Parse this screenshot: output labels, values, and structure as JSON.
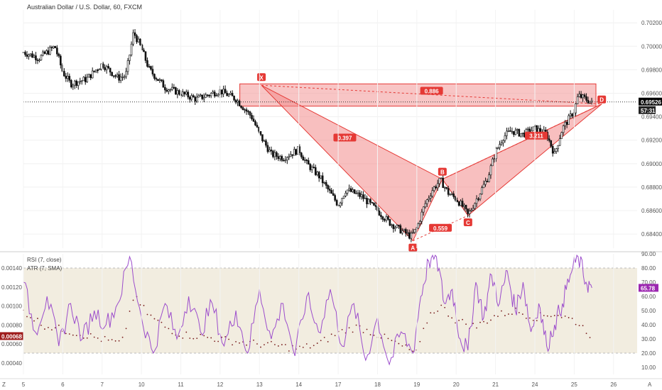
{
  "colors": {
    "pattern_fill": "#f28b8b",
    "pattern_stroke": "#e53935",
    "rsi_line": "#9c4dcc",
    "atr_dots": "#7a1f1f",
    "band_fill": "#ede6d3",
    "candle": "#111111",
    "badge": "#e53935",
    "price_badge_bg": "#000000",
    "rsi_badge_bg": "#9c27b0",
    "atr_badge_bg": "#9e1b1b"
  },
  "header": {
    "symbol_title": "Australian Dollar / U.S. Dollar, 60, FXCM"
  },
  "indicators": {
    "rsi_label": "RSI (7, close)",
    "atr_label": "ATR (7, SMA)",
    "rsi_current": "65.78",
    "atr_current": "0.00068"
  },
  "price_scale": {
    "current_price": "0.69526",
    "countdown": "57:31"
  },
  "footer": {
    "left_corner": "Z",
    "right_corner": "A"
  },
  "chart_data": [
    {
      "type": "candlestick",
      "title": "Australian Dollar / U.S. Dollar, 60, FXCM",
      "x_ticks": [
        "5",
        "6",
        "7",
        "10",
        "11",
        "12",
        "13",
        "14",
        "17",
        "18",
        "19",
        "20",
        "21",
        "24",
        "25",
        "26"
      ],
      "y_ticks": [
        "0.70200",
        "0.70000",
        "0.69800",
        "0.69600",
        "0.69400",
        "0.69200",
        "0.69000",
        "0.68800",
        "0.68600",
        "0.68400"
      ],
      "ylim": [
        0.6828,
        0.7031
      ],
      "close_path": [
        {
          "x": 5.0,
          "y": 0.6995
        },
        {
          "x": 5.4,
          "y": 0.699
        },
        {
          "x": 5.8,
          "y": 0.7
        },
        {
          "x": 6.0,
          "y": 0.6978
        },
        {
          "x": 6.2,
          "y": 0.6968
        },
        {
          "x": 6.6,
          "y": 0.6972
        },
        {
          "x": 7.0,
          "y": 0.6985
        },
        {
          "x": 7.4,
          "y": 0.6973
        },
        {
          "x": 7.6,
          "y": 0.6975
        },
        {
          "x": 7.7,
          "y": 0.6993
        },
        {
          "x": 7.8,
          "y": 0.7012
        },
        {
          "x": 8.0,
          "y": 0.6998
        },
        {
          "x": 8.2,
          "y": 0.698
        },
        {
          "x": 8.6,
          "y": 0.6965
        },
        {
          "x": 9.0,
          "y": 0.696
        },
        {
          "x": 9.4,
          "y": 0.6955
        },
        {
          "x": 9.8,
          "y": 0.696
        },
        {
          "x": 10.0,
          "y": 0.6962
        },
        {
          "x": 10.4,
          "y": 0.6955
        },
        {
          "x": 10.8,
          "y": 0.694
        },
        {
          "x": 11.0,
          "y": 0.6925
        },
        {
          "x": 11.3,
          "y": 0.6908
        },
        {
          "x": 11.6,
          "y": 0.6905
        },
        {
          "x": 12.0,
          "y": 0.6912
        },
        {
          "x": 12.2,
          "y": 0.69
        },
        {
          "x": 12.5,
          "y": 0.689
        },
        {
          "x": 12.8,
          "y": 0.6875
        },
        {
          "x": 13.0,
          "y": 0.6865
        },
        {
          "x": 13.2,
          "y": 0.6878
        },
        {
          "x": 13.6,
          "y": 0.6872
        },
        {
          "x": 14.0,
          "y": 0.686
        },
        {
          "x": 14.3,
          "y": 0.685
        },
        {
          "x": 14.6,
          "y": 0.6843
        },
        {
          "x": 14.85,
          "y": 0.6838
        },
        {
          "x": 15.0,
          "y": 0.6845
        },
        {
          "x": 15.2,
          "y": 0.6865
        },
        {
          "x": 15.4,
          "y": 0.6878
        },
        {
          "x": 15.6,
          "y": 0.6886
        },
        {
          "x": 15.8,
          "y": 0.6875
        },
        {
          "x": 16.0,
          "y": 0.687
        },
        {
          "x": 16.2,
          "y": 0.6862
        },
        {
          "x": 16.3,
          "y": 0.6856
        },
        {
          "x": 16.6,
          "y": 0.6875
        },
        {
          "x": 16.8,
          "y": 0.6888
        },
        {
          "x": 17.0,
          "y": 0.691
        },
        {
          "x": 17.2,
          "y": 0.6923
        },
        {
          "x": 17.4,
          "y": 0.6928
        },
        {
          "x": 17.7,
          "y": 0.6925
        },
        {
          "x": 18.0,
          "y": 0.693
        },
        {
          "x": 18.3,
          "y": 0.6925
        },
        {
          "x": 18.5,
          "y": 0.6908
        },
        {
          "x": 18.7,
          "y": 0.693
        },
        {
          "x": 19.0,
          "y": 0.6945
        },
        {
          "x": 19.1,
          "y": 0.6958
        },
        {
          "x": 19.3,
          "y": 0.6955
        },
        {
          "x": 19.45,
          "y": 0.6952
        }
      ],
      "pattern": {
        "name": "harmonic XABCD",
        "points": [
          {
            "label": "X",
            "x": 11.05,
            "y": 0.69668
          },
          {
            "label": "A",
            "x": 14.9,
            "y": 0.68343
          },
          {
            "label": "B",
            "x": 15.65,
            "y": 0.68868
          },
          {
            "label": "C",
            "x": 16.3,
            "y": 0.68558
          },
          {
            "label": "D",
            "x": 19.7,
            "y": 0.69508
          }
        ],
        "ratios": [
          "0.886",
          "0.397",
          "0.559",
          "3.211"
        ]
      },
      "zone": {
        "y_low": 0.6949,
        "y_high": 0.6968
      }
    },
    {
      "type": "line",
      "title": "",
      "series": [
        {
          "name": "RSI (7, close)",
          "y_ticks": [
            "90.00",
            "80.00",
            "70.00",
            "60.00",
            "50.00",
            "40.00",
            "30.00",
            "20.00",
            "10.00"
          ],
          "ylim": [
            5,
            90
          ],
          "band": [
            20,
            80
          ],
          "points": [
            {
              "x": 5.0,
              "y": 70
            },
            {
              "x": 5.3,
              "y": 35
            },
            {
              "x": 5.6,
              "y": 60
            },
            {
              "x": 5.9,
              "y": 25
            },
            {
              "x": 6.2,
              "y": 55
            },
            {
              "x": 6.5,
              "y": 30
            },
            {
              "x": 6.8,
              "y": 50
            },
            {
              "x": 7.1,
              "y": 40
            },
            {
              "x": 7.4,
              "y": 55
            },
            {
              "x": 7.7,
              "y": 88
            },
            {
              "x": 8.0,
              "y": 45
            },
            {
              "x": 8.3,
              "y": 20
            },
            {
              "x": 8.6,
              "y": 55
            },
            {
              "x": 8.9,
              "y": 30
            },
            {
              "x": 9.2,
              "y": 60
            },
            {
              "x": 9.5,
              "y": 35
            },
            {
              "x": 9.8,
              "y": 55
            },
            {
              "x": 10.1,
              "y": 25
            },
            {
              "x": 10.4,
              "y": 50
            },
            {
              "x": 10.7,
              "y": 20
            },
            {
              "x": 11.0,
              "y": 65
            },
            {
              "x": 11.3,
              "y": 30
            },
            {
              "x": 11.6,
              "y": 55
            },
            {
              "x": 11.9,
              "y": 18
            },
            {
              "x": 12.2,
              "y": 60
            },
            {
              "x": 12.5,
              "y": 35
            },
            {
              "x": 12.8,
              "y": 65
            },
            {
              "x": 13.1,
              "y": 25
            },
            {
              "x": 13.4,
              "y": 55
            },
            {
              "x": 13.7,
              "y": 15
            },
            {
              "x": 14.0,
              "y": 45
            },
            {
              "x": 14.3,
              "y": 12
            },
            {
              "x": 14.6,
              "y": 35
            },
            {
              "x": 14.9,
              "y": 20
            },
            {
              "x": 15.1,
              "y": 60
            },
            {
              "x": 15.3,
              "y": 85
            },
            {
              "x": 15.5,
              "y": 88
            },
            {
              "x": 15.7,
              "y": 55
            },
            {
              "x": 15.9,
              "y": 65
            },
            {
              "x": 16.1,
              "y": 30
            },
            {
              "x": 16.3,
              "y": 22
            },
            {
              "x": 16.5,
              "y": 70
            },
            {
              "x": 16.7,
              "y": 45
            },
            {
              "x": 16.9,
              "y": 75
            },
            {
              "x": 17.1,
              "y": 55
            },
            {
              "x": 17.3,
              "y": 78
            },
            {
              "x": 17.5,
              "y": 50
            },
            {
              "x": 17.7,
              "y": 70
            },
            {
              "x": 17.9,
              "y": 35
            },
            {
              "x": 18.1,
              "y": 55
            },
            {
              "x": 18.3,
              "y": 25
            },
            {
              "x": 18.5,
              "y": 40
            },
            {
              "x": 18.7,
              "y": 55
            },
            {
              "x": 18.9,
              "y": 75
            },
            {
              "x": 19.1,
              "y": 88
            },
            {
              "x": 19.3,
              "y": 70
            },
            {
              "x": 19.45,
              "y": 66
            }
          ]
        },
        {
          "name": "ATR (7, SMA)",
          "y_ticks": [
            "0.00140",
            "0.00120",
            "0.00100",
            "0.00080",
            "0.00060",
            "0.00040"
          ],
          "ylim": [
            0.00028,
            0.00155
          ],
          "points": [
            {
              "x": 5.0,
              "y": 0.00095
            },
            {
              "x": 5.5,
              "y": 0.0008
            },
            {
              "x": 6.0,
              "y": 0.00075
            },
            {
              "x": 6.5,
              "y": 0.0007
            },
            {
              "x": 7.0,
              "y": 0.00065
            },
            {
              "x": 7.5,
              "y": 0.0006
            },
            {
              "x": 7.8,
              "y": 0.0011
            },
            {
              "x": 8.2,
              "y": 0.0009
            },
            {
              "x": 8.6,
              "y": 0.00078
            },
            {
              "x": 9.0,
              "y": 0.0007
            },
            {
              "x": 9.5,
              "y": 0.00068
            },
            {
              "x": 10.0,
              "y": 0.00065
            },
            {
              "x": 10.5,
              "y": 0.00062
            },
            {
              "x": 11.0,
              "y": 0.0006
            },
            {
              "x": 11.5,
              "y": 0.00058
            },
            {
              "x": 12.0,
              "y": 0.00055
            },
            {
              "x": 12.5,
              "y": 0.0006
            },
            {
              "x": 13.0,
              "y": 0.00072
            },
            {
              "x": 13.5,
              "y": 0.00078
            },
            {
              "x": 14.0,
              "y": 0.0007
            },
            {
              "x": 14.5,
              "y": 0.0006
            },
            {
              "x": 15.0,
              "y": 0.0005
            },
            {
              "x": 15.3,
              "y": 0.0009
            },
            {
              "x": 15.6,
              "y": 0.001
            },
            {
              "x": 16.0,
              "y": 0.00085
            },
            {
              "x": 16.5,
              "y": 0.00078
            },
            {
              "x": 17.0,
              "y": 0.0009
            },
            {
              "x": 17.5,
              "y": 0.00095
            },
            {
              "x": 18.0,
              "y": 0.00088
            },
            {
              "x": 18.5,
              "y": 0.00092
            },
            {
              "x": 19.0,
              "y": 0.00085
            },
            {
              "x": 19.3,
              "y": 0.00075
            },
            {
              "x": 19.45,
              "y": 0.00068
            }
          ]
        }
      ],
      "x_ticks": [
        "5",
        "6",
        "7",
        "10",
        "11",
        "12",
        "13",
        "14",
        "17",
        "18",
        "19",
        "20",
        "21",
        "24",
        "25",
        "26"
      ]
    }
  ]
}
